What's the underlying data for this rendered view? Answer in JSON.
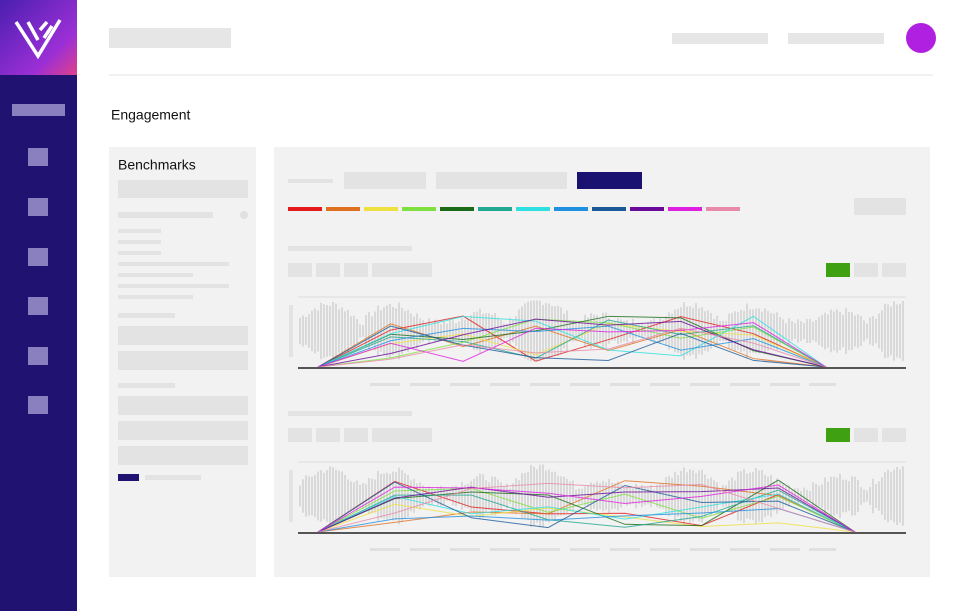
{
  "header": {
    "title": "Engagement"
  },
  "sidebar_panel": {
    "title": "Benchmarks"
  }
}
